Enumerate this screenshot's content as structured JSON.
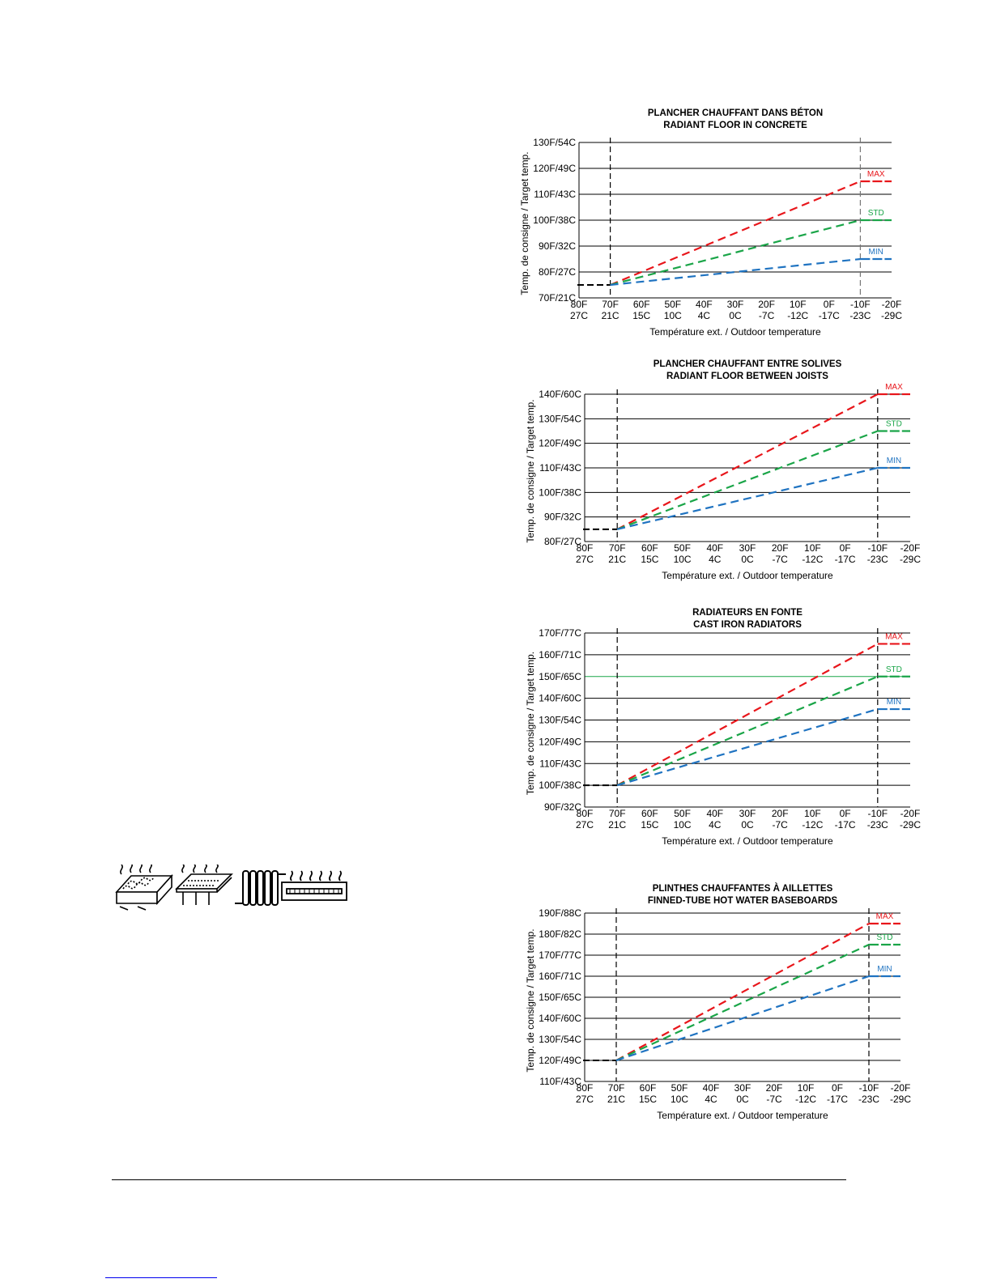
{
  "chart_data": [
    {
      "type": "line",
      "title_fr": "PLANCHER CHAUFFANT DANS BÉTON",
      "title_en": "RADIANT FLOOR IN CONCRETE",
      "ylabel": "Temp. de consigne / Target temp.",
      "xlabel": "Température ext. / Outdoor temperature",
      "x_categories_f": [
        "80F",
        "70F",
        "60F",
        "50F",
        "40F",
        "30F",
        "20F",
        "10F",
        "0F",
        "-10F",
        "-20F"
      ],
      "x_categories_c": [
        "27C",
        "21C",
        "15C",
        "10C",
        "4C",
        "0C",
        "-7C",
        "-12C",
        "-17C",
        "-23C",
        "-29C"
      ],
      "xlim": [
        80,
        -20
      ],
      "y_ticks": [
        "70F/21C",
        "80F/27C",
        "90F/32C",
        "100F/38C",
        "110F/43C",
        "120F/49C",
        "130F/54C"
      ],
      "ylim": [
        70,
        130
      ],
      "design_lines_x": [
        70,
        -10
      ],
      "baseline": {
        "x": [
          80,
          70
        ],
        "y": 75
      },
      "series": [
        {
          "name": "MAX",
          "color": "#e8161b",
          "x": [
            70,
            -10,
            -20
          ],
          "y": [
            75,
            115,
            115
          ]
        },
        {
          "name": "STD",
          "color": "#1aa548",
          "x": [
            70,
            -10,
            -20
          ],
          "y": [
            75,
            100,
            100
          ]
        },
        {
          "name": "MIN",
          "color": "#1f73c1",
          "x": [
            70,
            -10,
            -20
          ],
          "y": [
            75,
            85,
            85
          ]
        }
      ]
    },
    {
      "type": "line",
      "title_fr": "PLANCHER CHAUFFANT ENTRE SOLIVES",
      "title_en": "RADIANT FLOOR BETWEEN JOISTS",
      "ylabel": "Temp. de consigne / Target temp.",
      "xlabel": "Température ext. / Outdoor temperature",
      "x_categories_f": [
        "80F",
        "70F",
        "60F",
        "50F",
        "40F",
        "30F",
        "20F",
        "10F",
        "0F",
        "-10F",
        "-20F"
      ],
      "x_categories_c": [
        "27C",
        "21C",
        "15C",
        "10C",
        "4C",
        "0C",
        "-7C",
        "-12C",
        "-17C",
        "-23C",
        "-29C"
      ],
      "xlim": [
        80,
        -20
      ],
      "y_ticks": [
        "80F/27C",
        "90F/32C",
        "100F/38C",
        "110F/43C",
        "120F/49C",
        "130F/54C",
        "140F/60C"
      ],
      "ylim": [
        80,
        140
      ],
      "design_lines_x": [
        70,
        -10
      ],
      "baseline": {
        "x": [
          80,
          70
        ],
        "y": 85
      },
      "series": [
        {
          "name": "MAX",
          "color": "#e8161b",
          "x": [
            70,
            -10,
            -20
          ],
          "y": [
            85,
            140,
            140
          ]
        },
        {
          "name": "STD",
          "color": "#1aa548",
          "x": [
            70,
            -10,
            -20
          ],
          "y": [
            85,
            125,
            125
          ]
        },
        {
          "name": "MIN",
          "color": "#1f73c1",
          "x": [
            70,
            -10,
            -20
          ],
          "y": [
            85,
            110,
            110
          ]
        }
      ]
    },
    {
      "type": "line",
      "title_fr": "RADIATEURS EN FONTE",
      "title_en": "CAST IRON RADIATORS",
      "ylabel": "Temp. de consigne / Target temp.",
      "xlabel": "Température ext. / Outdoor temperature",
      "x_categories_f": [
        "80F",
        "70F",
        "60F",
        "50F",
        "40F",
        "30F",
        "20F",
        "10F",
        "0F",
        "-10F",
        "-20F"
      ],
      "x_categories_c": [
        "27C",
        "21C",
        "15C",
        "10C",
        "4C",
        "0C",
        "-7C",
        "-12C",
        "-17C",
        "-23C",
        "-29C"
      ],
      "xlim": [
        80,
        -20
      ],
      "y_ticks": [
        "90F/32C",
        "100F/38C",
        "110F/43C",
        "120F/49C",
        "130F/54C",
        "140F/60C",
        "150F/65C",
        "160F/71C",
        "170F/77C"
      ],
      "ylim": [
        90,
        170
      ],
      "design_lines_x": [
        70,
        -10
      ],
      "baseline": {
        "x": [
          80,
          70
        ],
        "y": 100
      },
      "highlight_gridline": {
        "y": 150,
        "color": "#1aa548"
      },
      "series": [
        {
          "name": "MAX",
          "color": "#e8161b",
          "x": [
            70,
            -10,
            -20
          ],
          "y": [
            100,
            165,
            165
          ]
        },
        {
          "name": "STD",
          "color": "#1aa548",
          "x": [
            70,
            -10,
            -20
          ],
          "y": [
            100,
            150,
            150
          ]
        },
        {
          "name": "MIN",
          "color": "#1f73c1",
          "x": [
            70,
            -10,
            -20
          ],
          "y": [
            100,
            135,
            135
          ]
        }
      ]
    },
    {
      "type": "line",
      "title_fr": "PLINTHES CHAUFFANTES À AILLETTES",
      "title_en": "FINNED-TUBE HOT WATER BASEBOARDS",
      "ylabel": "Temp. de consigne / Target temp.",
      "xlabel": "Température ext. / Outdoor temperature",
      "x_categories_f": [
        "80F",
        "70F",
        "60F",
        "50F",
        "40F",
        "30F",
        "20F",
        "10F",
        "0F",
        "-10F",
        "-20F"
      ],
      "x_categories_c": [
        "27C",
        "21C",
        "15C",
        "10C",
        "4C",
        "0C",
        "-7C",
        "-12C",
        "-17C",
        "-23C",
        "-29C"
      ],
      "xlim": [
        80,
        -20
      ],
      "y_ticks": [
        "110F/43C",
        "120F/49C",
        "130F/54C",
        "140F/60C",
        "150F/65C",
        "160F/71C",
        "170F/77C",
        "180F/82C",
        "190F/88C"
      ],
      "ylim": [
        110,
        190
      ],
      "design_lines_x": [
        70,
        -10
      ],
      "baseline": {
        "x": [
          80,
          70
        ],
        "y": 120
      },
      "series": [
        {
          "name": "MAX",
          "color": "#e8161b",
          "x": [
            70,
            -10,
            -20
          ],
          "y": [
            120,
            185,
            185
          ]
        },
        {
          "name": "STD",
          "color": "#1aa548",
          "x": [
            70,
            -10,
            -20
          ],
          "y": [
            120,
            175,
            175
          ]
        },
        {
          "name": "MIN",
          "color": "#1f73c1",
          "x": [
            70,
            -10,
            -20
          ],
          "y": [
            120,
            160,
            160
          ]
        }
      ]
    }
  ],
  "icons": [
    "concrete-slab-heating-icon",
    "joist-floor-heating-icon",
    "cast-iron-radiator-icon",
    "baseboard-heater-icon"
  ]
}
